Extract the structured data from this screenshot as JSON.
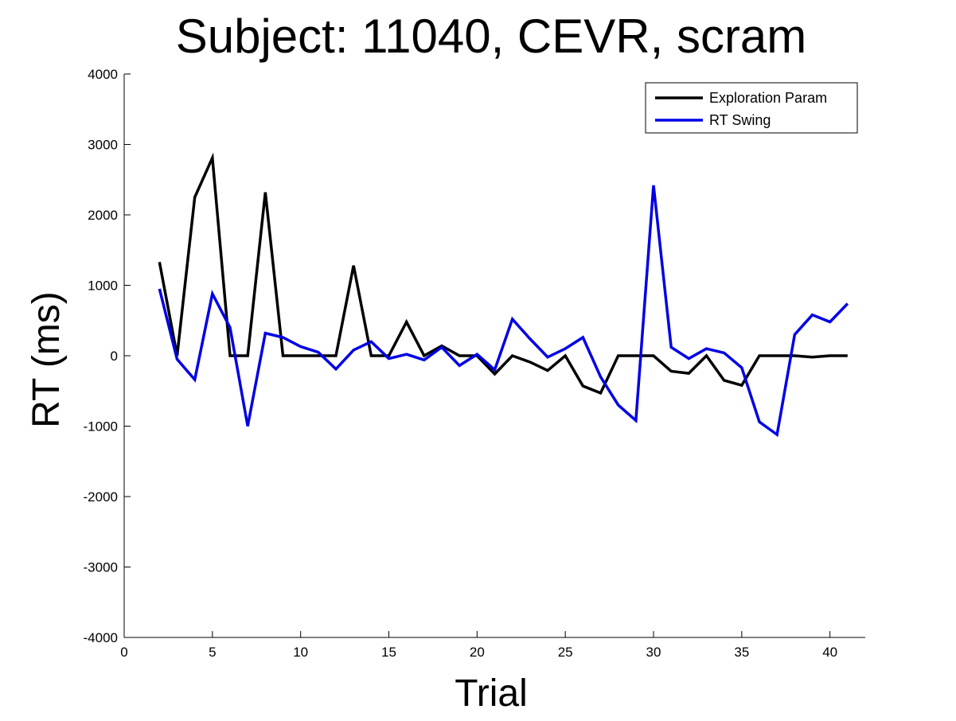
{
  "chart_data": {
    "type": "line",
    "title": "Subject: 11040, CEVR, scram",
    "xlabel": "Trial",
    "ylabel": "RT (ms)",
    "xlim": [
      0,
      42
    ],
    "ylim": [
      -4000,
      4000
    ],
    "xticks": [
      0,
      5,
      10,
      15,
      20,
      25,
      30,
      35,
      40
    ],
    "yticks": [
      -4000,
      -3000,
      -2000,
      -1000,
      0,
      1000,
      2000,
      3000,
      4000
    ],
    "grid": false,
    "legend_position": "top-right",
    "x": [
      2,
      3,
      4,
      5,
      6,
      7,
      8,
      9,
      10,
      11,
      12,
      13,
      14,
      15,
      16,
      17,
      18,
      19,
      20,
      21,
      22,
      23,
      24,
      25,
      26,
      27,
      28,
      29,
      30,
      31,
      32,
      33,
      34,
      35,
      36,
      37,
      38,
      39,
      40,
      41
    ],
    "series": [
      {
        "name": "Exploration Param",
        "color": "#000000",
        "values": [
          1330,
          0,
          2250,
          2810,
          0,
          0,
          2320,
          0,
          0,
          0,
          0,
          1280,
          0,
          0,
          480,
          0,
          140,
          0,
          0,
          -260,
          0,
          -90,
          -210,
          0,
          -430,
          -530,
          0,
          0,
          0,
          -220,
          -250,
          0,
          -350,
          -420,
          0,
          0,
          0,
          -20,
          0,
          0
        ]
      },
      {
        "name": "RT Swing",
        "color": "#0000e6",
        "values": [
          950,
          -50,
          -340,
          880,
          400,
          -1000,
          320,
          260,
          130,
          50,
          -190,
          80,
          200,
          -40,
          20,
          -60,
          120,
          -140,
          20,
          -200,
          520,
          240,
          -20,
          100,
          260,
          -300,
          -700,
          -920,
          2420,
          120,
          -40,
          100,
          40,
          -170,
          -940,
          -1120,
          300,
          580,
          480,
          740
        ]
      }
    ]
  }
}
